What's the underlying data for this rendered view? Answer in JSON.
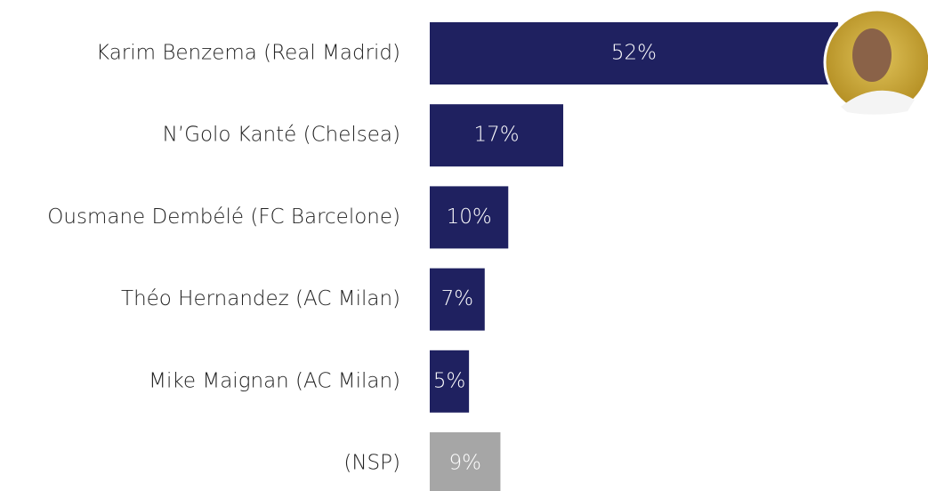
{
  "chart_data": {
    "type": "barh",
    "categories": [
      "Karim Benzema (Real Madrid)",
      "N’Golo Kanté (Chelsea)",
      "Ousmane Dembélé (FC Barcelone)",
      "Théo Hernandez (AC Milan)",
      "Mike Maignan (AC Milan)",
      "(NSP)"
    ],
    "values": [
      52,
      17,
      10,
      7,
      5,
      9
    ],
    "value_labels": [
      "52%",
      "17%",
      "10%",
      "7%",
      "5%",
      "9%"
    ],
    "colors": [
      "#1f2160",
      "#1f2160",
      "#1f2160",
      "#1f2160",
      "#1f2160",
      "#a6a6a6"
    ],
    "xlim": [
      0,
      63
    ]
  }
}
